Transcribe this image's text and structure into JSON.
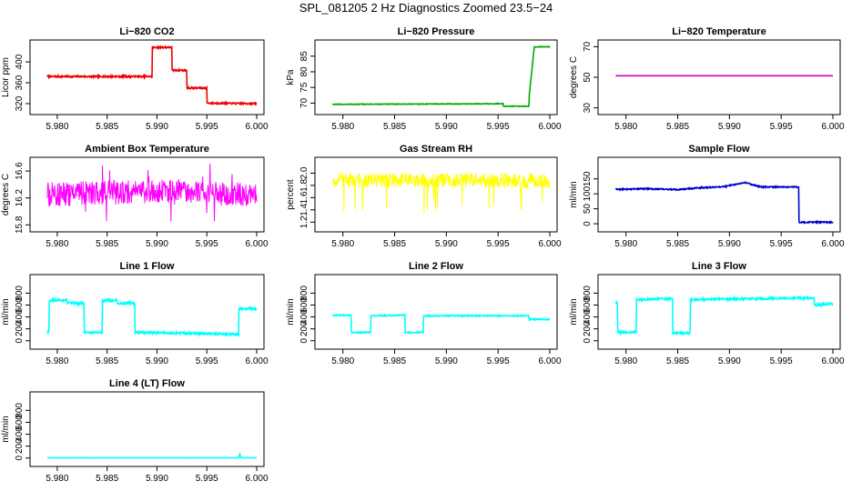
{
  "page": {
    "title": "SPL_081205  2 Hz Diagnostics Zoomed 23.5−24"
  },
  "chart_data": [
    {
      "type": "line",
      "title": "Li−820 CO2",
      "ylabel": "Licor ppm",
      "xlabel": "",
      "color": "#ee0000",
      "xlim": [
        5.978,
        6.0
      ],
      "ylim": [
        306,
        435
      ],
      "xticks": [
        "5.980",
        "5.985",
        "5.990",
        "5.995",
        "6.000"
      ],
      "yticks": [
        320,
        360,
        400
      ],
      "ytick_labels": [
        "320",
        "360",
        "400"
      ],
      "series": [
        {
          "name": "CO2",
          "noise": 1.5,
          "x": [
            5.979,
            5.9895,
            5.9895,
            5.9915,
            5.9915,
            5.993,
            5.993,
            5.995,
            5.995,
            6.0
          ],
          "y": [
            372,
            372,
            428,
            428,
            384,
            384,
            350,
            350,
            321,
            320
          ]
        }
      ]
    },
    {
      "type": "line",
      "title": "Li−820 Pressure",
      "ylabel": "kPa",
      "xlabel": "",
      "color": "#00aa00",
      "xlim": [
        5.978,
        6.0
      ],
      "ylim": [
        67.5,
        89
      ],
      "xticks": [
        "5.980",
        "5.985",
        "5.990",
        "5.995",
        "6.000"
      ],
      "yticks": [
        70,
        75,
        80,
        85
      ],
      "ytick_labels": [
        "70",
        "75",
        "80",
        "85"
      ],
      "series": [
        {
          "name": "Pressure",
          "noise": 0.1,
          "x": [
            5.979,
            5.9955,
            5.9955,
            5.998,
            5.998,
            5.9985,
            6.0
          ],
          "y": [
            69.6,
            69.8,
            69.0,
            69.0,
            72,
            88,
            88
          ]
        }
      ]
    },
    {
      "type": "line",
      "title": "Li−820 Temperature",
      "ylabel": "degrees C",
      "xlabel": "",
      "color": "#cc00cc",
      "xlim": [
        5.978,
        6.0
      ],
      "ylim": [
        28,
        72
      ],
      "xticks": [
        "5.980",
        "5.985",
        "5.990",
        "5.995",
        "6.000"
      ],
      "yticks": [
        30,
        50,
        70
      ],
      "ytick_labels": [
        "30",
        "50",
        "70"
      ],
      "series": [
        {
          "name": "Temperature",
          "noise": 0,
          "x": [
            5.979,
            6.0
          ],
          "y": [
            51,
            51
          ]
        }
      ]
    },
    {
      "type": "line",
      "title": "Ambient Box Temperature",
      "ylabel": "degrees C",
      "xlabel": "",
      "color": "#ff00ff",
      "xlim": [
        5.978,
        6.0
      ],
      "ylim": [
        15.75,
        16.75
      ],
      "xticks": [
        "5.980",
        "5.985",
        "5.990",
        "5.995",
        "6.000"
      ],
      "yticks": [
        15.8,
        16.2,
        16.6
      ],
      "ytick_labels": [
        "15.8",
        "16.2",
        "16.6"
      ],
      "series": [
        {
          "name": "Box temp",
          "noise": 0.18,
          "x": [
            5.979,
            5.99,
            6.0
          ],
          "y": [
            16.25,
            16.3,
            16.25
          ]
        }
      ]
    },
    {
      "type": "line",
      "title": "Gas Stream RH",
      "ylabel": "percent",
      "xlabel": "",
      "color": "#ffff00",
      "xlim": [
        5.978,
        6.0
      ],
      "ylim": [
        1.1,
        2.2
      ],
      "xticks": [
        "5.980",
        "5.985",
        "5.990",
        "5.995",
        "6.000"
      ],
      "yticks": [
        1.2,
        1.6,
        2.0
      ],
      "yticks_extra": [
        1.4,
        1.8
      ],
      "ytick_labels": [
        "1.2",
        "1.4",
        "1.6",
        "1.8",
        "2.0"
      ],
      "series": [
        {
          "name": "RH",
          "noise": 0.12,
          "x": [
            5.979,
            6.0
          ],
          "y": [
            1.88,
            1.88
          ]
        }
      ]
    },
    {
      "type": "line",
      "title": "Sample Flow",
      "ylabel": "ml/min",
      "xlabel": "",
      "color": "#0000cc",
      "xlim": [
        5.978,
        6.0
      ],
      "ylim": [
        -15,
        210
      ],
      "xticks": [
        "5.980",
        "5.985",
        "5.990",
        "5.995",
        "6.000"
      ],
      "yticks": [
        0,
        50,
        100,
        150
      ],
      "ytick_labels": [
        "0",
        "50",
        "100",
        "150"
      ],
      "series": [
        {
          "name": "Sample flow",
          "noise": 2,
          "x": [
            5.979,
            5.982,
            5.985,
            5.987,
            5.9895,
            5.9915,
            5.993,
            5.9967,
            5.9967,
            6.0
          ],
          "y": [
            115,
            117,
            114,
            120,
            124,
            138,
            123,
            123,
            5,
            5
          ]
        }
      ]
    },
    {
      "type": "line",
      "title": "Line 1 Flow",
      "ylabel": "ml/min",
      "xlabel": "",
      "color": "#00ffff",
      "xlim": [
        5.978,
        6.0
      ],
      "ylim": [
        -80,
        1050
      ],
      "xticks": [
        "5.980",
        "5.985",
        "5.990",
        "5.995",
        "6.000"
      ],
      "yticks": [
        0,
        400,
        800
      ],
      "yticks_extra": [
        200,
        600
      ],
      "ytick_labels": [
        "0",
        "200",
        "400",
        "600",
        "800"
      ],
      "series": [
        {
          "name": "Line 1",
          "noise": 18,
          "x": [
            5.979,
            5.9792,
            5.9792,
            5.981,
            5.981,
            5.9827,
            5.9827,
            5.9845,
            5.9845,
            5.986,
            5.986,
            5.9878,
            5.9878,
            5.9982,
            5.9982,
            6.0
          ],
          "y": [
            150,
            150,
            680,
            680,
            630,
            630,
            140,
            140,
            680,
            680,
            630,
            630,
            140,
            110,
            540,
            540
          ]
        }
      ]
    },
    {
      "type": "line",
      "title": "Line 2 Flow",
      "ylabel": "ml/min",
      "xlabel": "",
      "color": "#00ffff",
      "xlim": [
        5.978,
        6.0
      ],
      "ylim": [
        -80,
        1050
      ],
      "xticks": [
        "5.980",
        "5.985",
        "5.990",
        "5.995",
        "6.000"
      ],
      "yticks": [
        0,
        400,
        800
      ],
      "yticks_extra": [
        200,
        600
      ],
      "ytick_labels": [
        "0",
        "200",
        "400",
        "600",
        "800"
      ],
      "series": [
        {
          "name": "Line 2",
          "noise": 10,
          "x": [
            5.979,
            5.9808,
            5.9808,
            5.9827,
            5.9827,
            5.986,
            5.986,
            5.9878,
            5.9878,
            5.998,
            5.998,
            6.0
          ],
          "y": [
            430,
            430,
            140,
            140,
            420,
            430,
            140,
            140,
            420,
            420,
            360,
            360
          ]
        }
      ]
    },
    {
      "type": "line",
      "title": "Line 3 Flow",
      "ylabel": "ml/min",
      "xlabel": "",
      "color": "#00ffff",
      "xlim": [
        5.978,
        6.0
      ],
      "ylim": [
        -80,
        1050
      ],
      "xticks": [
        "5.980",
        "5.985",
        "5.990",
        "5.995",
        "6.000"
      ],
      "yticks": [
        0,
        400,
        800
      ],
      "yticks_extra": [
        200,
        600
      ],
      "ytick_labels": [
        "0",
        "200",
        "400",
        "600",
        "800"
      ],
      "series": [
        {
          "name": "Line 3",
          "noise": 18,
          "x": [
            5.979,
            5.9792,
            5.9792,
            5.981,
            5.981,
            5.9845,
            5.9845,
            5.9862,
            5.9862,
            5.9982,
            5.9982,
            6.0
          ],
          "y": [
            640,
            640,
            140,
            140,
            690,
            710,
            130,
            130,
            690,
            720,
            600,
            620
          ]
        }
      ]
    },
    {
      "type": "line",
      "title": "Line 4 (LT) Flow",
      "ylabel": "ml/min",
      "xlabel": "",
      "color": "#00ffff",
      "xlim": [
        5.978,
        6.0
      ],
      "ylim": [
        -80,
        1050
      ],
      "xticks": [
        "5.980",
        "5.985",
        "5.990",
        "5.995",
        "6.000"
      ],
      "yticks": [
        0,
        400,
        800
      ],
      "yticks_extra": [
        200,
        600
      ],
      "ytick_labels": [
        "0",
        "200",
        "400",
        "600",
        "800"
      ],
      "series": [
        {
          "name": "Line 4",
          "noise": 2,
          "x": [
            5.979,
            5.9982,
            5.9983,
            5.9984,
            6.0
          ],
          "y": [
            5,
            5,
            80,
            5,
            5
          ]
        }
      ]
    }
  ]
}
